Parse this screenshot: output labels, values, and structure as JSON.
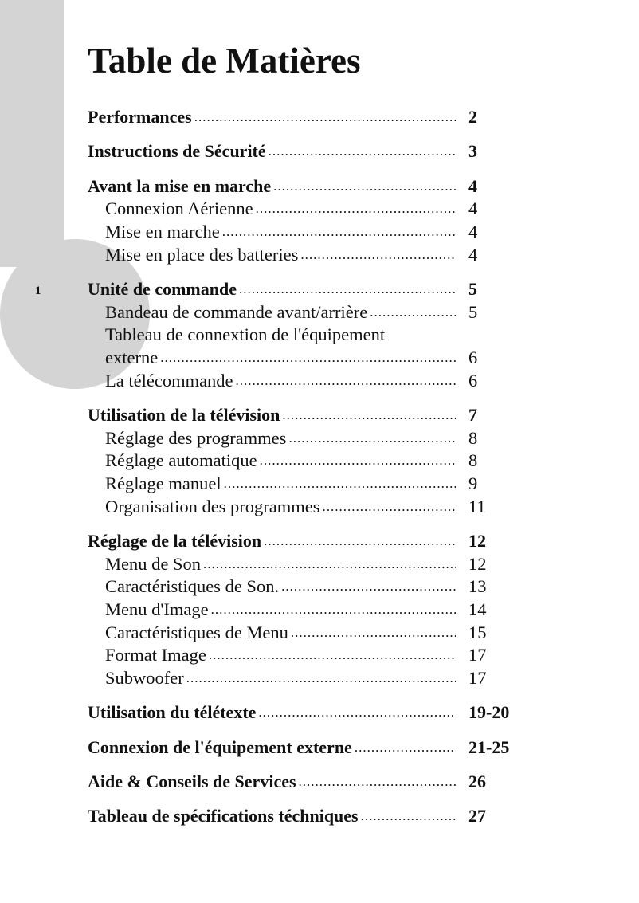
{
  "page_number": "1",
  "title": "Table de Matières",
  "sections": [
    {
      "label": "Performances",
      "page": "2",
      "items": []
    },
    {
      "label": "Instructions de Sécurité",
      "page": "3",
      "items": []
    },
    {
      "label": "Avant la mise en marche",
      "page": "4",
      "items": [
        {
          "label": "Connexion Aérienne",
          "page": "4"
        },
        {
          "label": "Mise en marche",
          "page": "4"
        },
        {
          "label": "Mise en place des batteries",
          "page": "4"
        }
      ]
    },
    {
      "label": "Unité de commande",
      "page": "5",
      "items": [
        {
          "label": "Bandeau de commande avant/arrière",
          "page": "5"
        },
        {
          "label": "Tableau de connextion de l'équipement",
          "page": ""
        },
        {
          "label": "externe",
          "page": "6"
        },
        {
          "label": "La télécommande",
          "page": "6"
        }
      ]
    },
    {
      "label": "Utilisation de la télévision",
      "page": "7",
      "items": [
        {
          "label": "Réglage des programmes",
          "page": "8"
        },
        {
          "label": "Réglage automatique",
          "page": "8"
        },
        {
          "label": "Réglage manuel",
          "page": "9"
        },
        {
          "label": "Organisation des programmes",
          "page": "11"
        }
      ]
    },
    {
      "label": "Réglage de la télévision",
      "page": "12",
      "items": [
        {
          "label": "Menu de Son",
          "page": "12"
        },
        {
          "label": "Caractéristiques de Son.",
          "page": "13"
        },
        {
          "label": "Menu d'Image",
          "page": "14"
        },
        {
          "label": "Caractéristiques de Menu",
          "page": "15"
        },
        {
          "label": "Format Image",
          "page": "17"
        },
        {
          "label": "Subwoofer",
          "page": "17"
        }
      ]
    },
    {
      "label": "Utilisation du télétexte",
      "page": "19-20",
      "items": []
    },
    {
      "label": "Connexion de l'équipement externe",
      "page": "21-25",
      "items": []
    },
    {
      "label": "Aide & Conseils de Services",
      "page": "26",
      "items": []
    },
    {
      "label": "Tableau de spécifications téchniques",
      "page": "27",
      "items": []
    }
  ]
}
